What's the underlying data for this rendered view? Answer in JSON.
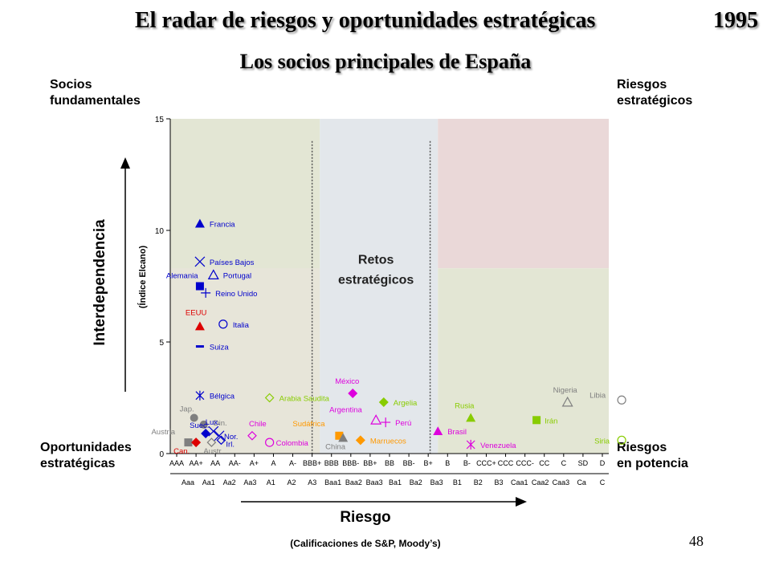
{
  "title": "El radar de riesgos y oportunidades estratégicas",
  "year": "1995",
  "subtitle": "Los socios principales de España",
  "corners": {
    "top_left": [
      "Socios",
      "fundamentales"
    ],
    "top_right": [
      "Riesgos",
      "estratégicos"
    ],
    "bottom_left": [
      "Oportunidades",
      "estratégicas"
    ],
    "bottom_right": [
      "Riesgos",
      "en potencia"
    ]
  },
  "page_number": "48",
  "colors": {
    "zone_green": "#e3e6d4",
    "zone_blue": "#e3e7eb",
    "zone_pink": "#ead8d8",
    "zone_lower_left": "#e7e5d9",
    "blue": "#0000cc",
    "red": "#dd0000",
    "gray": "#7f7f7f",
    "magenta": "#dd00dd",
    "green": "#88cc00",
    "orange": "#ff9900"
  },
  "chart_data": {
    "type": "scatter",
    "ylabel": "Interdependencia",
    "ylabel_sub": "(Índice Elcano)",
    "xlabel": "Riesgo",
    "xlabel_sub": "(Calificaciones de S&P, Moody’s)",
    "zone_label": [
      "Retos",
      "estratégicos"
    ],
    "ylim": [
      0,
      15
    ],
    "yticks": [
      0,
      5,
      10,
      15
    ],
    "x_categories_sp": [
      "AAA",
      "AA+",
      "AA",
      "AA-",
      "A+",
      "A",
      "A-",
      "BBB+",
      "BBB",
      "BBB-",
      "BB+",
      "BB",
      "BB-",
      "B+",
      "B",
      "B-",
      "CCC+",
      "CCC",
      "CCC-",
      "CC",
      "C",
      "SD",
      "D"
    ],
    "x_categories_moodys": [
      "Aaa",
      "Aa1",
      "Aa2",
      "Aa3",
      "A1",
      "A2",
      "A3",
      "Baa1",
      "Baa2",
      "Baa3",
      "Ba1",
      "Ba2",
      "Ba3",
      "B1",
      "B2",
      "B3",
      "Caa1",
      "Caa2",
      "Caa3",
      "Ca",
      "C"
    ],
    "points": [
      {
        "label": "Francia",
        "x": 1.2,
        "y": 10.3,
        "marker": "triangle",
        "color": "blue"
      },
      {
        "label": "Países Bajos",
        "x": 1.2,
        "y": 8.6,
        "marker": "x",
        "color": "blue"
      },
      {
        "label": "Portugal",
        "x": 1.9,
        "y": 8.0,
        "marker": "triangle-open",
        "color": "blue"
      },
      {
        "label": "Alemania",
        "x": 1.2,
        "y": 7.5,
        "marker": "square",
        "color": "blue"
      },
      {
        "label": "Reino Unido",
        "x": 1.5,
        "y": 7.2,
        "marker": "plus",
        "color": "blue"
      },
      {
        "label": "EEUU",
        "x": 1.2,
        "y": 5.7,
        "marker": "triangle",
        "color": "red"
      },
      {
        "label": "Italia",
        "x": 2.4,
        "y": 5.8,
        "marker": "circle-open",
        "color": "blue"
      },
      {
        "label": "Suiza",
        "x": 1.2,
        "y": 4.8,
        "marker": "dash",
        "color": "blue"
      },
      {
        "label": "Bélgica",
        "x": 1.2,
        "y": 2.6,
        "marker": "asterisk",
        "color": "blue"
      },
      {
        "label": "Arabia Saudita",
        "x": 4.8,
        "y": 2.5,
        "marker": "diamond-open",
        "color": "green"
      },
      {
        "label": "México",
        "x": 9.1,
        "y": 2.7,
        "marker": "diamond",
        "color": "magenta"
      },
      {
        "label": "Argelia",
        "x": 10.7,
        "y": 2.3,
        "marker": "diamond",
        "color": "green"
      },
      {
        "label": "Nigeria",
        "x": 20.2,
        "y": 2.3,
        "marker": "triangle-open",
        "color": "gray"
      },
      {
        "label": "Libia",
        "x": 23.0,
        "y": 2.4,
        "marker": "circle-open",
        "color": "gray"
      },
      {
        "label": "Jap.",
        "x": 0.9,
        "y": 1.6,
        "marker": "circle",
        "color": "gray"
      },
      {
        "label": "Din.",
        "x": 1.4,
        "y": 1.3,
        "marker": "circle",
        "color": "gray"
      },
      {
        "label": "Suec.",
        "x": 1.5,
        "y": 0.9,
        "marker": "diamond",
        "color": "blue"
      },
      {
        "label": "Lux.",
        "x": 1.9,
        "y": 1.0,
        "marker": "x",
        "color": "blue"
      },
      {
        "label": "Nor.",
        "x": 2.2,
        "y": 0.8,
        "marker": "x",
        "color": "blue"
      },
      {
        "label": "Austria",
        "x": 0.6,
        "y": 0.5,
        "marker": "square",
        "color": "gray"
      },
      {
        "label": "Can.",
        "x": 1.0,
        "y": 0.5,
        "marker": "diamond",
        "color": "red"
      },
      {
        "label": "Austr.",
        "x": 1.8,
        "y": 0.5,
        "marker": "diamond-open",
        "color": "gray"
      },
      {
        "label": "Irl.",
        "x": 2.3,
        "y": 0.6,
        "marker": "diamond-open",
        "color": "blue"
      },
      {
        "label": "Chile",
        "x": 3.9,
        "y": 0.8,
        "marker": "diamond-open",
        "color": "magenta"
      },
      {
        "label": "Colombia",
        "x": 4.8,
        "y": 0.5,
        "marker": "circle-open",
        "color": "magenta"
      },
      {
        "label": "Sudáfrica",
        "x": 8.4,
        "y": 0.8,
        "marker": "square",
        "color": "orange"
      },
      {
        "label": "China",
        "x": 8.6,
        "y": 0.7,
        "marker": "triangle",
        "color": "gray"
      },
      {
        "label": "Argentina",
        "x": 10.3,
        "y": 1.5,
        "marker": "triangle-open",
        "color": "magenta"
      },
      {
        "label": "Perú",
        "x": 10.8,
        "y": 1.4,
        "marker": "plus",
        "color": "magenta"
      },
      {
        "label": "Marruecos",
        "x": 9.5,
        "y": 0.6,
        "marker": "diamond",
        "color": "orange"
      },
      {
        "label": "Brasil",
        "x": 13.5,
        "y": 1.0,
        "marker": "triangle",
        "color": "magenta"
      },
      {
        "label": "Rusia",
        "x": 15.2,
        "y": 1.6,
        "marker": "triangle",
        "color": "green"
      },
      {
        "label": "Venezuela",
        "x": 15.2,
        "y": 0.4,
        "marker": "asterisk",
        "color": "magenta"
      },
      {
        "label": "Irán",
        "x": 18.6,
        "y": 1.5,
        "marker": "square",
        "color": "green"
      },
      {
        "label": "Siria",
        "x": 23.0,
        "y": 0.6,
        "marker": "circle-open",
        "color": "green"
      }
    ]
  }
}
